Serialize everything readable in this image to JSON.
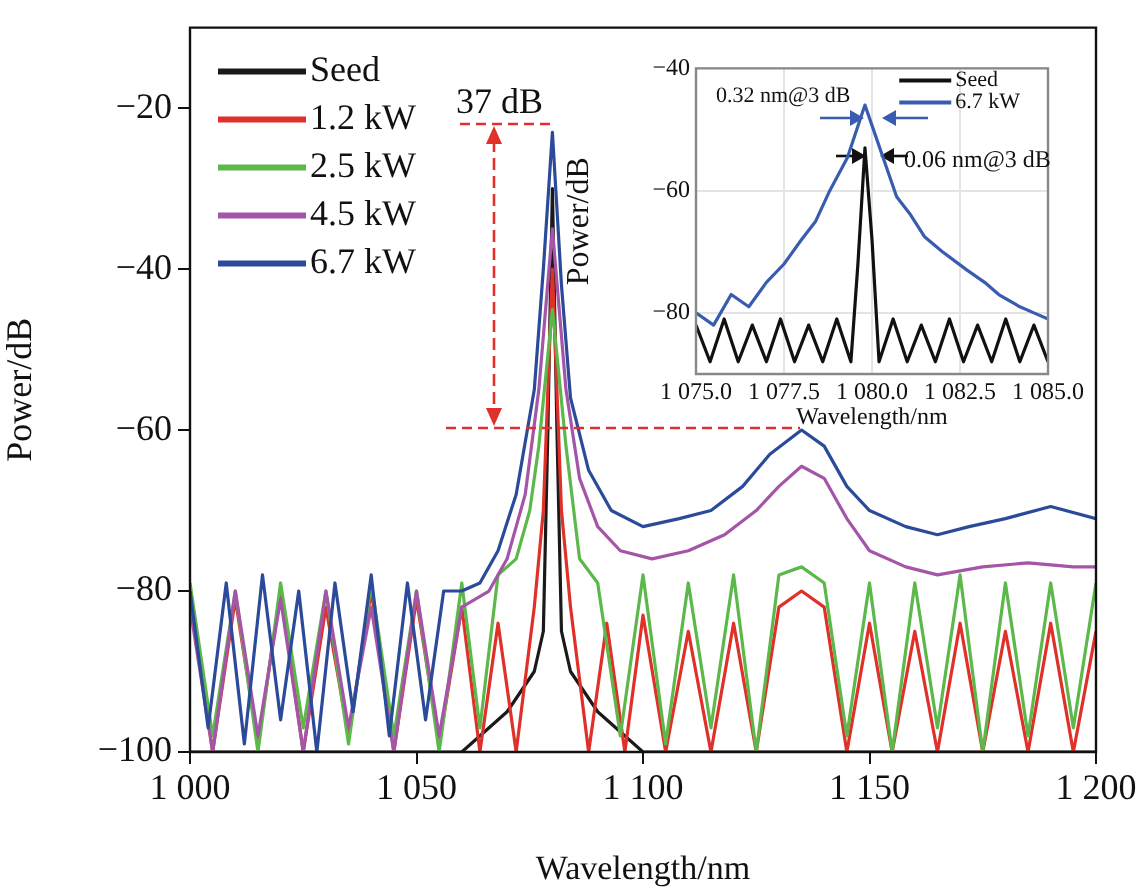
{
  "chart_data": [
    {
      "type": "line",
      "xlabel": "Wavelength/nm",
      "ylabel": "Power/dB",
      "xlim": [
        1000,
        1200
      ],
      "ylim": [
        -100,
        -10
      ],
      "xticks": [
        {
          "value": 1000,
          "label": "1 000"
        },
        {
          "value": 1050,
          "label": "1 050"
        },
        {
          "value": 1100,
          "label": "1 100"
        },
        {
          "value": 1150,
          "label": "1 150"
        },
        {
          "value": 1200,
          "label": "1 200"
        }
      ],
      "yticks": [
        {
          "value": -100,
          "label": "−100"
        },
        {
          "value": -80,
          "label": "−80"
        },
        {
          "value": -60,
          "label": "−60"
        },
        {
          "value": -40,
          "label": "−40"
        },
        {
          "value": -20,
          "label": "−20"
        }
      ],
      "legend": "top left",
      "marker": "none",
      "line_style": "solid",
      "grid": false,
      "annotations": [
        "37 dB"
      ],
      "series": [
        {
          "name": "Seed",
          "color": "#1a1a1a",
          "x": [
            1000,
            1060,
            1070,
            1076,
            1078,
            1079,
            1080,
            1081,
            1082,
            1084,
            1090,
            1100,
            1150,
            1200
          ],
          "values": [
            -100,
            -100,
            -95,
            -90,
            -85,
            -60,
            -30,
            -60,
            -85,
            -90,
            -95,
            -100,
            -100,
            -100
          ]
        },
        {
          "name": "1.2 kW",
          "color": "#e0302a",
          "x": [
            1000,
            1005,
            1010,
            1015,
            1020,
            1025,
            1030,
            1035,
            1040,
            1045,
            1050,
            1055,
            1060,
            1064,
            1068,
            1072,
            1076,
            1078,
            1080,
            1082,
            1084,
            1088,
            1092,
            1096,
            1100,
            1105,
            1110,
            1115,
            1120,
            1125,
            1130,
            1135,
            1140,
            1145,
            1150,
            1155,
            1160,
            1165,
            1170,
            1175,
            1180,
            1185,
            1190,
            1195,
            1200
          ],
          "values": [
            -80,
            -100,
            -81,
            -99,
            -80,
            -100,
            -82,
            -98,
            -80,
            -100,
            -81,
            -99,
            -82,
            -100,
            -84,
            -100,
            -82,
            -70,
            -40,
            -70,
            -82,
            -100,
            -84,
            -100,
            -83,
            -100,
            -85,
            -100,
            -84,
            -100,
            -82,
            -80,
            -82,
            -100,
            -84,
            -100,
            -85,
            -100,
            -84,
            -100,
            -85,
            -100,
            -84,
            -100,
            -85
          ]
        },
        {
          "name": "2.5 kW",
          "color": "#5cb84a",
          "x": [
            1000,
            1005,
            1010,
            1015,
            1020,
            1025,
            1030,
            1035,
            1040,
            1045,
            1050,
            1055,
            1060,
            1064,
            1068,
            1072,
            1075,
            1077,
            1080,
            1083,
            1086,
            1090,
            1095,
            1100,
            1105,
            1110,
            1115,
            1120,
            1125,
            1130,
            1135,
            1140,
            1145,
            1150,
            1155,
            1160,
            1165,
            1170,
            1175,
            1180,
            1185,
            1190,
            1195,
            1200
          ],
          "values": [
            -79,
            -98,
            -80,
            -100,
            -79,
            -97,
            -80,
            -99,
            -79,
            -98,
            -80,
            -100,
            -79,
            -97,
            -78,
            -76,
            -70,
            -62,
            -45,
            -62,
            -76,
            -79,
            -98,
            -78,
            -99,
            -79,
            -97,
            -78,
            -100,
            -78,
            -77,
            -79,
            -98,
            -79,
            -100,
            -79,
            -97,
            -78,
            -100,
            -79,
            -98,
            -79,
            -97,
            -79
          ]
        },
        {
          "name": "4.5 kW",
          "color": "#a455a8",
          "x": [
            1000,
            1005,
            1010,
            1015,
            1020,
            1025,
            1030,
            1035,
            1040,
            1045,
            1050,
            1055,
            1060,
            1066,
            1070,
            1074,
            1077,
            1080,
            1083,
            1086,
            1090,
            1095,
            1102,
            1110,
            1118,
            1125,
            1130,
            1135,
            1140,
            1145,
            1150,
            1158,
            1165,
            1175,
            1185,
            1195,
            1200
          ],
          "values": [
            -82,
            -100,
            -80,
            -98,
            -81,
            -100,
            -80,
            -97,
            -82,
            -100,
            -80,
            -98,
            -82,
            -80,
            -76,
            -68,
            -55,
            -35,
            -55,
            -66,
            -72,
            -75,
            -76,
            -75,
            -73,
            -70,
            -67,
            -64.5,
            -66,
            -71,
            -75,
            -77,
            -78,
            -77,
            -76.5,
            -77,
            -77
          ]
        },
        {
          "name": "6.7 kW",
          "color": "#2b4a9a",
          "x": [
            1000,
            1004,
            1008,
            1012,
            1016,
            1020,
            1024,
            1028,
            1032,
            1036,
            1040,
            1044,
            1048,
            1052,
            1056,
            1060,
            1064,
            1068,
            1072,
            1076,
            1078,
            1080,
            1082,
            1084,
            1088,
            1093,
            1100,
            1108,
            1115,
            1122,
            1128,
            1135,
            1140,
            1145,
            1150,
            1158,
            1165,
            1172,
            1180,
            1190,
            1200
          ],
          "values": [
            -80,
            -97,
            -79,
            -99,
            -78,
            -96,
            -80,
            -100,
            -79,
            -95,
            -78,
            -98,
            -79,
            -96,
            -80,
            -80,
            -79,
            -75,
            -68,
            -55,
            -40,
            -23,
            -42,
            -56,
            -65,
            -70,
            -72,
            -71,
            -70,
            -67,
            -63,
            -60,
            -62,
            -67,
            -70,
            -72,
            -73,
            -72,
            -71,
            -69.5,
            -71
          ]
        }
      ]
    },
    {
      "type": "line",
      "xlabel": "Wavelength/nm",
      "ylabel": "Power/dB",
      "xlim": [
        1075,
        1085
      ],
      "ylim": [
        -90,
        -40
      ],
      "xticks": [
        {
          "value": 1075,
          "label": "1 075.0"
        },
        {
          "value": 1077.5,
          "label": "1 077.5"
        },
        {
          "value": 1080,
          "label": "1 080.0"
        },
        {
          "value": 1082.5,
          "label": "1 082.5"
        },
        {
          "value": 1085,
          "label": "1 085.0"
        }
      ],
      "yticks": [
        {
          "value": -80,
          "label": "−80"
        },
        {
          "value": -60,
          "label": "−60"
        },
        {
          "value": -40,
          "label": "−40"
        }
      ],
      "legend": "top right",
      "marker": "none",
      "line_style": "solid",
      "grid": true,
      "annotations": [
        "0.32 nm@3 dB",
        "0.06 nm@3 dB"
      ],
      "series": [
        {
          "name": "Seed",
          "color": "#111111",
          "x": [
            1075,
            1075.4,
            1075.8,
            1076.2,
            1076.6,
            1077,
            1077.4,
            1077.8,
            1078.2,
            1078.6,
            1079,
            1079.4,
            1079.6,
            1079.8,
            1080,
            1080.2,
            1080.6,
            1081,
            1081.4,
            1081.8,
            1082.2,
            1082.6,
            1083,
            1083.4,
            1083.8,
            1084.2,
            1084.6,
            1085
          ],
          "values": [
            -82,
            -88,
            -81,
            -88,
            -82,
            -88,
            -81,
            -88,
            -82,
            -88,
            -81,
            -88,
            -72,
            -53,
            -68,
            -88,
            -81,
            -88,
            -82,
            -88,
            -81,
            -88,
            -82,
            -88,
            -81,
            -88,
            -82,
            -88
          ]
        },
        {
          "name": "6.7 kW",
          "color": "#3a5cb0",
          "x": [
            1075,
            1075.5,
            1076,
            1076.5,
            1077,
            1077.5,
            1078,
            1078.4,
            1078.8,
            1079.3,
            1079.8,
            1080.1,
            1080.4,
            1080.7,
            1081.1,
            1081.5,
            1082,
            1082.7,
            1083.2,
            1083.6,
            1084.2,
            1084.6,
            1085
          ],
          "values": [
            -80,
            -82,
            -77,
            -79,
            -75,
            -72,
            -68,
            -65,
            -60,
            -54.6,
            -46,
            -51,
            -56,
            -61,
            -64,
            -67.6,
            -70,
            -73,
            -75,
            -77,
            -79,
            -80,
            -81
          ]
        }
      ]
    }
  ]
}
